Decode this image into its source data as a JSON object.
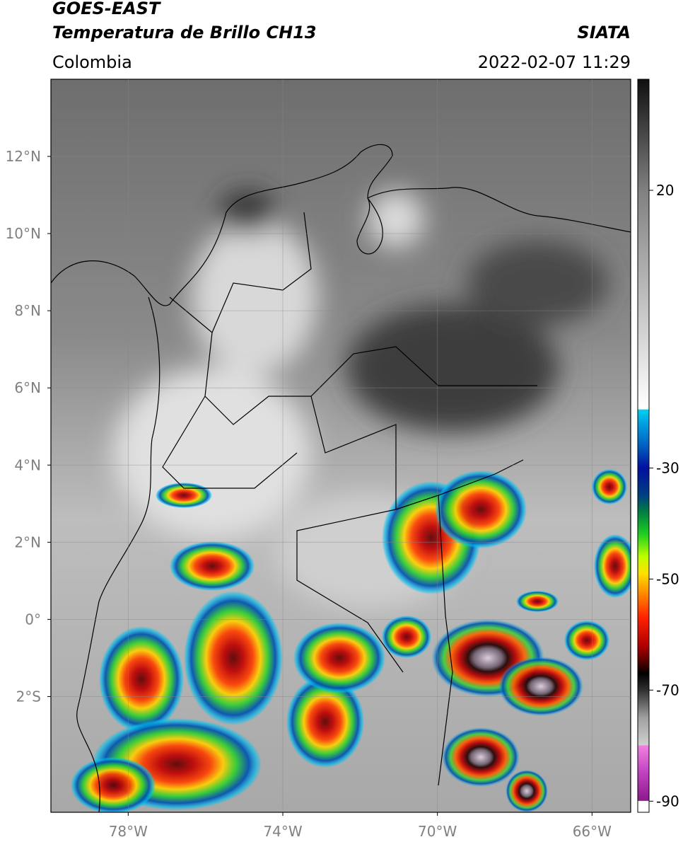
{
  "header": {
    "title": "GOES-EAST",
    "subtitle": "Temperatura de Brillo CH13",
    "source": "SIATA",
    "region": "Colombia",
    "datetime": "2022-02-07 11:29"
  },
  "map": {
    "xlim": [
      -80,
      -65
    ],
    "ylim": [
      -5,
      14
    ],
    "xticks": [
      {
        "value": -78,
        "label": "78°W"
      },
      {
        "value": -74,
        "label": "74°W"
      },
      {
        "value": -70,
        "label": "70°W"
      },
      {
        "value": -66,
        "label": "66°W"
      }
    ],
    "yticks": [
      {
        "value": 12,
        "label": "12°N"
      },
      {
        "value": 10,
        "label": "10°N"
      },
      {
        "value": 8,
        "label": "8°N"
      },
      {
        "value": 6,
        "label": "6°N"
      },
      {
        "value": 4,
        "label": "4°N"
      },
      {
        "value": 2,
        "label": "2°N"
      },
      {
        "value": 0,
        "label": "0°"
      },
      {
        "value": -2,
        "label": "2°S"
      }
    ],
    "grid": true
  },
  "colorbar": {
    "lim": [
      -92,
      40
    ],
    "ticks": [
      20,
      -30,
      -50,
      -70,
      -90
    ],
    "stops": [
      {
        "value": -92,
        "color": "#ffffff"
      },
      {
        "value": -90,
        "color": "#ffffff"
      },
      {
        "value": -89.9,
        "color": "#8b1a8b"
      },
      {
        "value": -85,
        "color": "#c040c0"
      },
      {
        "value": -80,
        "color": "#f080e0"
      },
      {
        "value": -79.9,
        "color": "#d0d0d0"
      },
      {
        "value": -75,
        "color": "#a0a0a0"
      },
      {
        "value": -70,
        "color": "#303030"
      },
      {
        "value": -67,
        "color": "#000000"
      },
      {
        "value": -65,
        "color": "#500000"
      },
      {
        "value": -62,
        "color": "#b00000"
      },
      {
        "value": -57,
        "color": "#ff2000"
      },
      {
        "value": -53,
        "color": "#ff8000"
      },
      {
        "value": -49,
        "color": "#ffe000"
      },
      {
        "value": -46,
        "color": "#c0ff00"
      },
      {
        "value": -42,
        "color": "#20d020"
      },
      {
        "value": -38,
        "color": "#008040"
      },
      {
        "value": -35,
        "color": "#004080"
      },
      {
        "value": -30,
        "color": "#0010a0"
      },
      {
        "value": -26,
        "color": "#0060c0"
      },
      {
        "value": -22,
        "color": "#00a0e0"
      },
      {
        "value": -19.5,
        "color": "#00d0f0"
      },
      {
        "value": -19.4,
        "color": "#ffffff"
      },
      {
        "value": 0,
        "color": "#c0c0c0"
      },
      {
        "value": 20,
        "color": "#808080"
      },
      {
        "value": 40,
        "color": "#101010"
      }
    ]
  }
}
